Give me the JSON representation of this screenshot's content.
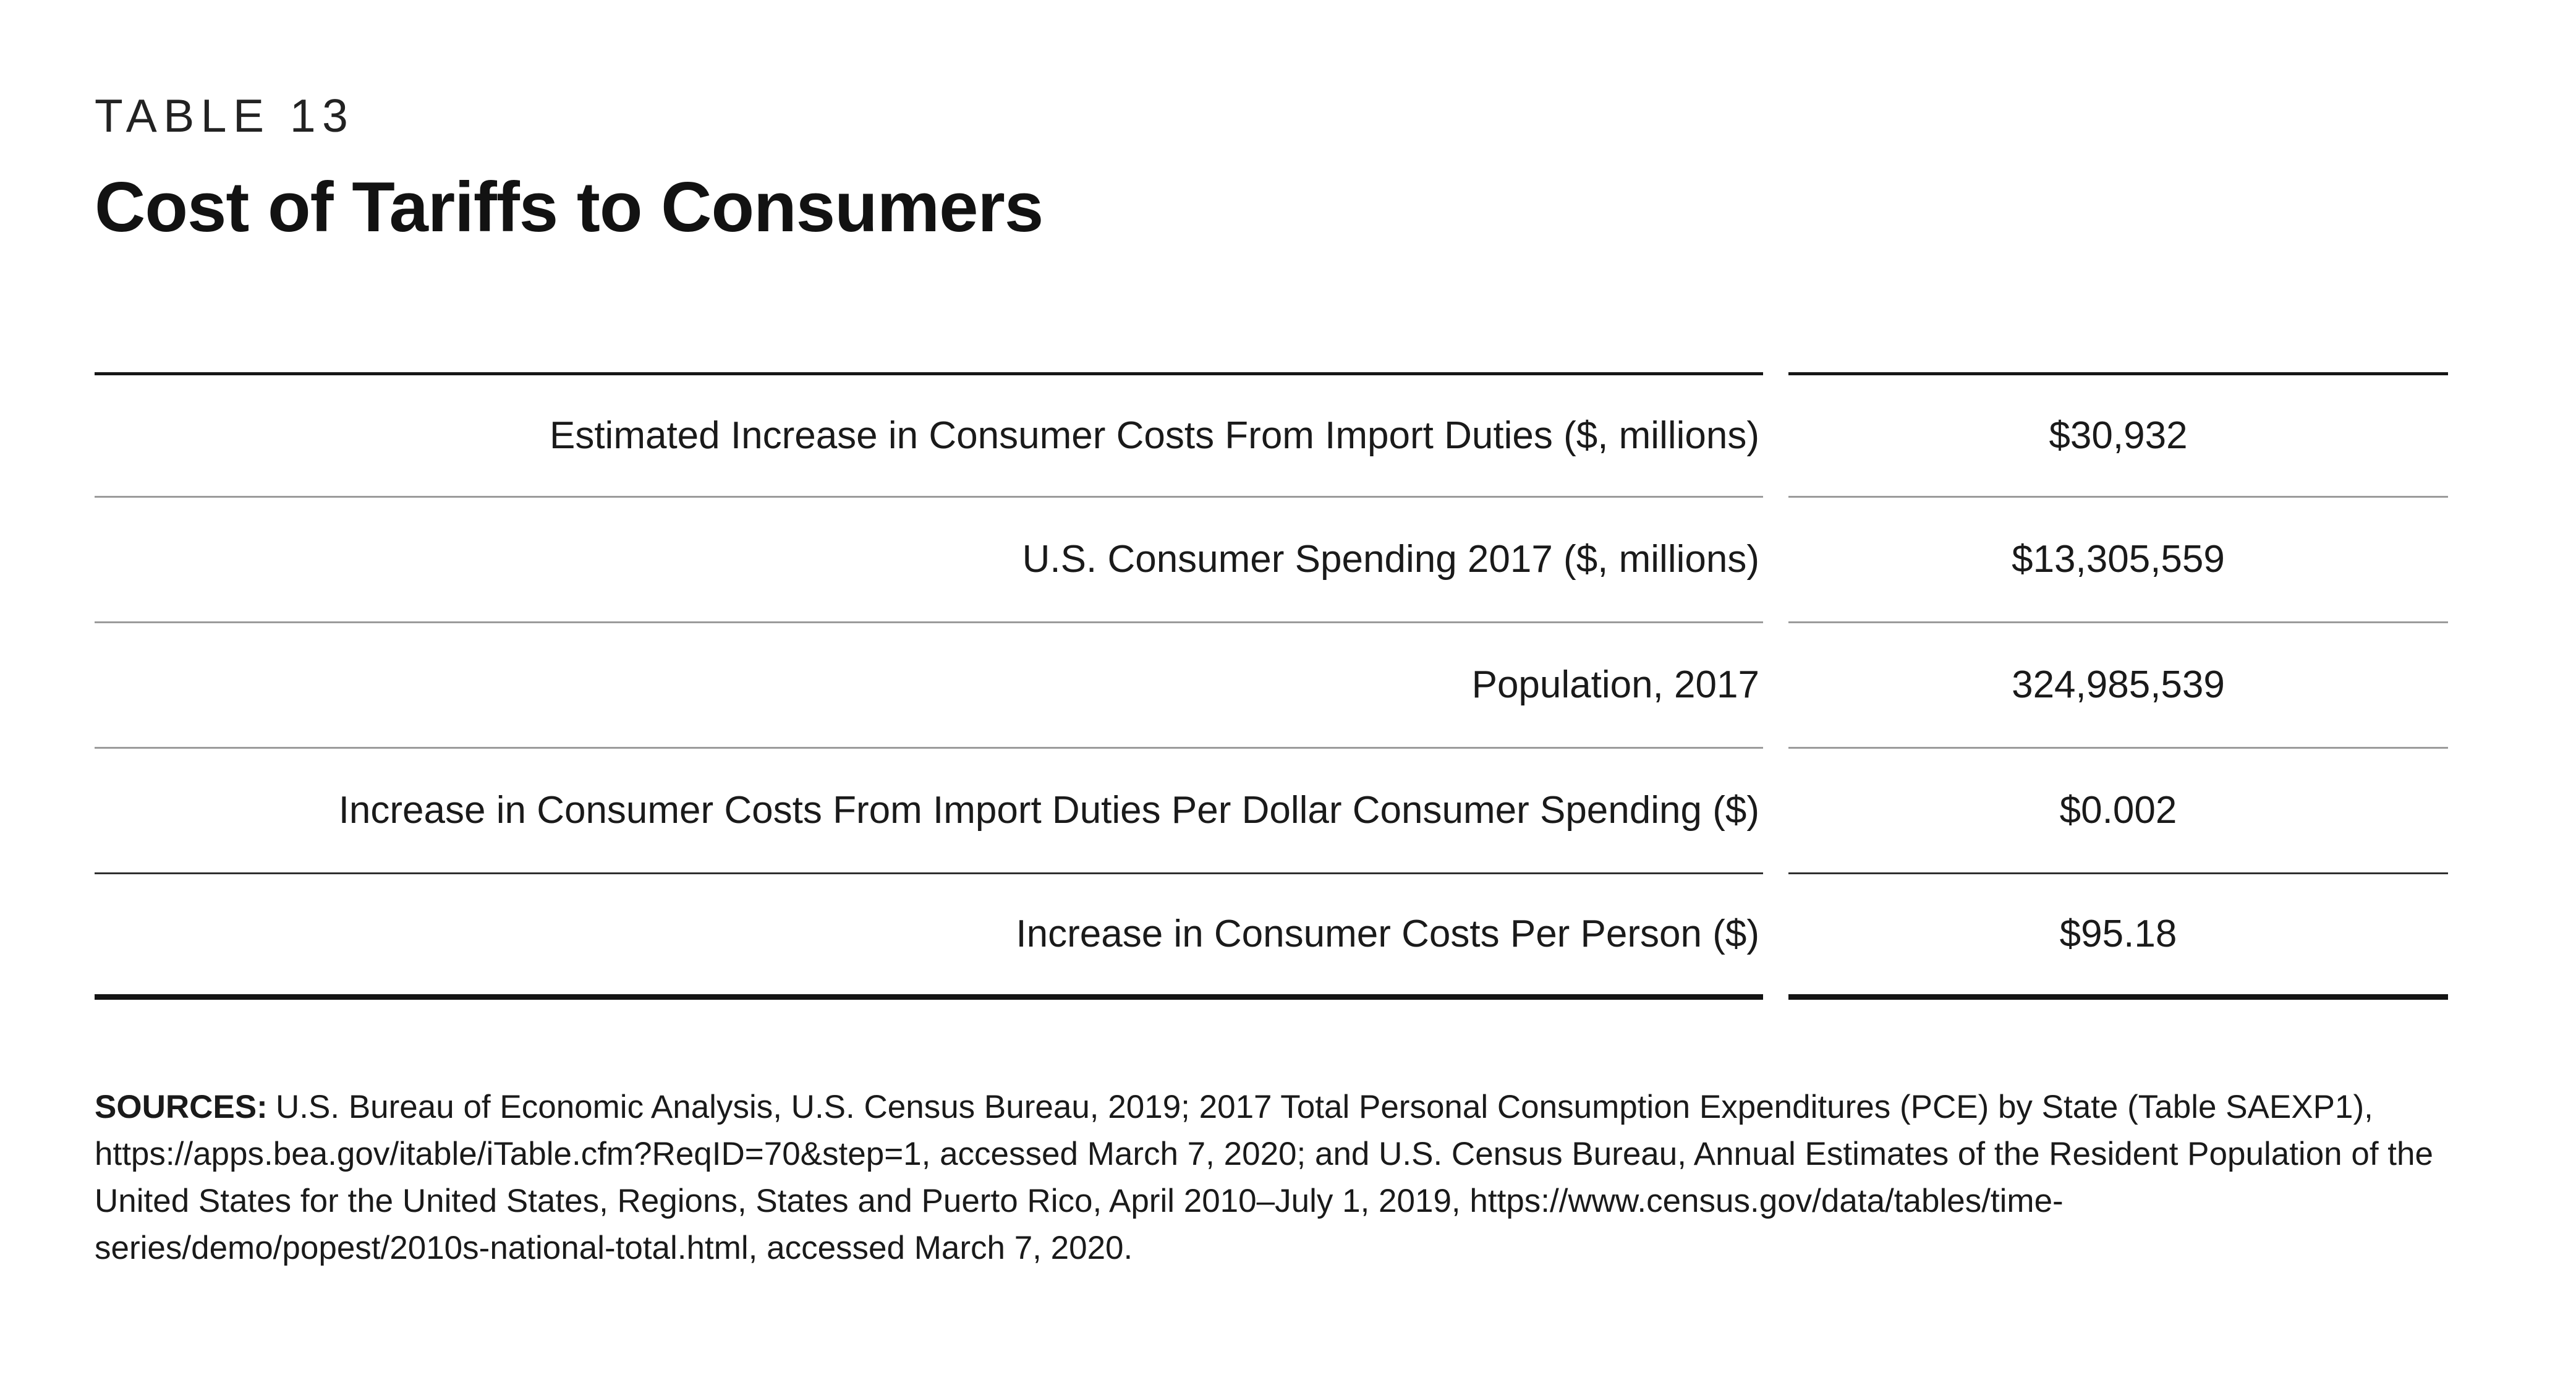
{
  "page": {
    "eyebrow": "TABLE 13",
    "title": "Cost of Tariffs to Consumers"
  },
  "table": {
    "rows": [
      {
        "label": "Estimated Increase in Consumer Costs From Import Duties ($, millions)",
        "value": "$30,932"
      },
      {
        "label": "U.S. Consumer Spending 2017 ($, millions)",
        "value": "$13,305,559"
      },
      {
        "label": "Population, 2017",
        "value": "324,985,539"
      },
      {
        "label": "Increase in Consumer Costs From Import Duties Per Dollar Consumer Spending ($)",
        "value": "$0.002"
      },
      {
        "label": "Increase in Consumer Costs Per Person ($)",
        "value": "$95.18"
      }
    ]
  },
  "sources": {
    "label": "SOURCES:",
    "text": "U.S. Bureau of Economic Analysis, U.S. Census Bureau, 2019; 2017 Total Personal Consumption Expenditures (PCE) by State (Table SAEXP1), https://apps.bea.gov/itable/iTable.cfm?ReqID=70&step=1, accessed March 7, 2020; and U.S. Census Bureau, Annual Estimates of the Resident Population of the United States for the United States, Regions, States and Puerto Rico, April 2010–July 1, 2019, https://www.census.gov/data/tables/time-series/demo/popest/2010s-national-total.html, accessed March 7, 2020."
  },
  "colors": {
    "text": "#1a1a1a",
    "rule_heavy": "#141414",
    "rule_gray": "#9b9b9b",
    "rule_dark_inner": "#2f2f2f",
    "background": "#ffffff"
  }
}
